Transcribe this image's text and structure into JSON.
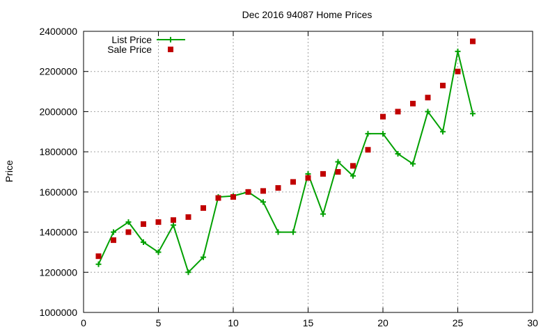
{
  "chart_data": {
    "type": "line",
    "title": "Dec 2016 94087 Home Prices",
    "xlabel": "",
    "ylabel": "Price",
    "xlim": [
      0,
      30
    ],
    "ylim": [
      1000000,
      2400000
    ],
    "xticks": [
      0,
      5,
      10,
      15,
      20,
      25,
      30
    ],
    "yticks": [
      1000000,
      1200000,
      1400000,
      1600000,
      1800000,
      2000000,
      2200000,
      2400000
    ],
    "xtick_labels": [
      "0",
      "5",
      "10",
      "15",
      "20",
      "25",
      "30"
    ],
    "ytick_labels": [
      "1000000",
      "1200000",
      "1400000",
      "1600000",
      "1800000",
      "2000000",
      "2200000",
      "2400000"
    ],
    "grid": true,
    "legend_position": "top-left",
    "series": [
      {
        "name": "List Price",
        "kind": "line-with-plus-markers",
        "color": "#00a000",
        "x": [
          1,
          2,
          3,
          4,
          5,
          6,
          7,
          8,
          9,
          10,
          11,
          12,
          13,
          14,
          15,
          16,
          17,
          18,
          19,
          20,
          21,
          22,
          23,
          24,
          25,
          26
        ],
        "values": [
          1240000,
          1400000,
          1450000,
          1350000,
          1300000,
          1435000,
          1200000,
          1275000,
          1575000,
          1580000,
          1600000,
          1550000,
          1400000,
          1400000,
          1690000,
          1490000,
          1750000,
          1680000,
          1890000,
          1890000,
          1790000,
          1740000,
          2000000,
          1900000,
          2300000,
          1990000
        ]
      },
      {
        "name": "Sale Price",
        "kind": "square-markers",
        "color": "#c00000",
        "x": [
          1,
          2,
          3,
          4,
          5,
          6,
          7,
          8,
          9,
          10,
          11,
          12,
          13,
          14,
          15,
          16,
          17,
          18,
          19,
          20,
          21,
          22,
          23,
          24,
          25,
          26
        ],
        "values": [
          1280000,
          1360000,
          1400000,
          1440000,
          1450000,
          1460000,
          1475000,
          1520000,
          1570000,
          1575000,
          1600000,
          1605000,
          1620000,
          1650000,
          1670000,
          1690000,
          1700000,
          1730000,
          1810000,
          1975000,
          2000000,
          2040000,
          2070000,
          2130000,
          2200000,
          2350000
        ]
      }
    ]
  }
}
